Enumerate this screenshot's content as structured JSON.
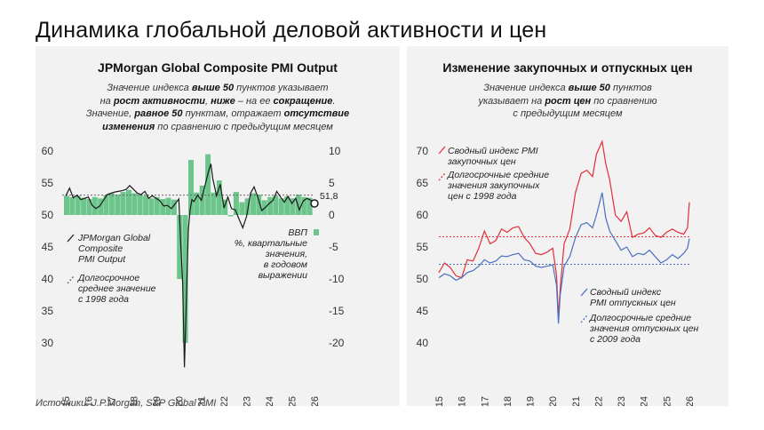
{
  "title": "Динамика глобальной деловой активности и цен",
  "source": "Источники: J.P.Morgan, S&P Global PMI",
  "left": {
    "title": "JPMorgan Global Composite PMI Output",
    "desc": {
      "l1a": "Значение индекса ",
      "l1b": "выше 50",
      "l1c": " пунктов указывает",
      "l2a": "на ",
      "l2b": "рост активности",
      "l2c": ", ",
      "l2d": "ниже",
      "l2e": " – на ее ",
      "l2f": "сокращение",
      "l2g": ".",
      "l3a": "Значение, ",
      "l3b": "равное 50",
      "l3c": " пунктам, отражает ",
      "l3d": "отсутствие",
      "l4a": "изменения",
      "l4b": " по сравнению с предыдущим месяцем"
    },
    "last_value_label": "51,8",
    "legend": {
      "pmi": [
        "JPMorgan Global",
        "Composite",
        "PMI Output"
      ],
      "avg": [
        "Долгосрочное",
        "среднее значение",
        "с 1998 года"
      ],
      "gdp": [
        "ВВП",
        "%, квартальные",
        "значения,",
        "в годовом",
        "выражении"
      ]
    }
  },
  "right": {
    "title": "Изменение закупочных и отпускных цен",
    "desc": {
      "l1a": "Значение индекса ",
      "l1b": "выше 50",
      "l1c": " пунктов",
      "l2a": "указывает на ",
      "l2b": "рост цен",
      "l2c": " по сравнению",
      "l3": "с предыдущим месяцем"
    },
    "legend": {
      "input": [
        "Сводный индекс PMI",
        "закупочных цен"
      ],
      "input_avg": [
        "Долгосрочные средние",
        "значения закупочных",
        "цен с 1998 года"
      ],
      "output": [
        "Сводный индекс",
        "PMI отпускных цен"
      ],
      "output_avg": [
        "Долгосрочные средние",
        "значения отпускных цен",
        "с 2009 года"
      ]
    }
  },
  "colors": {
    "pmi": "#1a1a1a",
    "gdp": "#6cc58a",
    "avg": "#666666",
    "input": "#e0303a",
    "output": "#4a6fbf",
    "panel": "#f2f2f2"
  },
  "chart_data": [
    {
      "type": "line",
      "title": "JPMorgan Global Composite PMI Output",
      "x_ticks": [
        "2015",
        "2016",
        "2017",
        "2018",
        "2019",
        "2020",
        "2021",
        "2022",
        "2023",
        "2024",
        "2025",
        "2026"
      ],
      "y_left": {
        "range": [
          30,
          60
        ],
        "ticks": [
          "30",
          "35",
          "40",
          "45",
          "50",
          "55",
          "60"
        ]
      },
      "y_right": {
        "range": [
          -20,
          10
        ],
        "ticks": [
          "-20",
          "-15",
          "-10",
          "-5",
          "0",
          "5",
          "10"
        ]
      },
      "series": [
        {
          "name": "JPMorgan Global Composite PMI Output",
          "axis": "left",
          "type": "line",
          "x": [
            2015.0,
            2015.17,
            2015.33,
            2015.5,
            2015.67,
            2015.83,
            2016.0,
            2016.17,
            2016.33,
            2016.5,
            2016.67,
            2016.83,
            2017.0,
            2017.17,
            2017.33,
            2017.5,
            2017.67,
            2017.83,
            2018.0,
            2018.17,
            2018.33,
            2018.5,
            2018.67,
            2018.83,
            2019.0,
            2019.17,
            2019.33,
            2019.5,
            2019.67,
            2019.83,
            2020.0,
            2020.08,
            2020.17,
            2020.25,
            2020.33,
            2020.42,
            2020.5,
            2020.58,
            2020.67,
            2020.83,
            2021.0,
            2021.17,
            2021.33,
            2021.42,
            2021.5,
            2021.67,
            2021.83,
            2022.0,
            2022.17,
            2022.33,
            2022.5,
            2022.67,
            2022.83,
            2023.0,
            2023.17,
            2023.33,
            2023.5,
            2023.67,
            2023.83,
            2024.0,
            2024.17,
            2024.33,
            2024.5,
            2024.67,
            2024.83,
            2025.0,
            2025.17,
            2025.33,
            2025.5,
            2025.67,
            2025.83,
            2026.0
          ],
          "values": [
            53.0,
            54.2,
            52.7,
            53.1,
            52.4,
            52.6,
            52.8,
            51.5,
            51.0,
            51.4,
            52.3,
            53.2,
            53.4,
            53.6,
            53.7,
            53.8,
            54.0,
            54.6,
            54.0,
            53.4,
            53.2,
            53.7,
            52.6,
            53.0,
            52.6,
            52.2,
            51.4,
            51.5,
            51.0,
            51.7,
            52.5,
            46.0,
            39.4,
            26.2,
            36.3,
            47.7,
            50.8,
            52.4,
            52.1,
            53.1,
            52.3,
            54.8,
            57.0,
            58.0,
            55.7,
            53.0,
            54.8,
            51.1,
            52.8,
            51.0,
            50.8,
            49.3,
            48.0,
            49.8,
            53.4,
            54.4,
            52.7,
            50.7,
            51.2,
            51.8,
            52.3,
            53.7,
            52.8,
            52.0,
            52.9,
            51.8,
            52.6,
            50.8,
            52.2,
            52.6,
            52.3,
            51.8
          ]
        },
        {
          "name": "Долгосрочное среднее значение с 1998 года",
          "axis": "left",
          "type": "dashed-line",
          "values": [
            53.1
          ]
        },
        {
          "name": "ВВП",
          "axis": "right",
          "type": "bar",
          "x": [
            2015.0,
            2015.25,
            2015.5,
            2015.75,
            2016.0,
            2016.25,
            2016.5,
            2016.75,
            2017.0,
            2017.25,
            2017.5,
            2017.75,
            2018.0,
            2018.25,
            2018.5,
            2018.75,
            2019.0,
            2019.25,
            2019.5,
            2019.75,
            2020.0,
            2020.25,
            2020.5,
            2020.75,
            2021.0,
            2021.25,
            2021.5,
            2021.75,
            2022.0,
            2022.25,
            2022.5,
            2022.75,
            2023.0,
            2023.25,
            2023.5,
            2023.75,
            2024.0,
            2024.25,
            2024.5,
            2024.75,
            2025.0,
            2025.25,
            2025.5,
            2025.75
          ],
          "values": [
            3.0,
            2.8,
            3.0,
            2.7,
            2.5,
            2.8,
            2.6,
            3.1,
            3.4,
            3.2,
            3.6,
            3.9,
            3.4,
            3.2,
            3.0,
            2.6,
            2.8,
            2.5,
            2.7,
            2.4,
            -10.0,
            -20.0,
            8.6,
            3.5,
            4.6,
            9.5,
            3.5,
            5.4,
            2.4,
            -0.2,
            3.6,
            2.0,
            2.6,
            3.4,
            3.2,
            2.3,
            2.8,
            3.0,
            2.6,
            2.9,
            2.6,
            3.2,
            2.8,
            2.7
          ]
        }
      ]
    },
    {
      "type": "line",
      "title": "Изменение закупочных и отпускных цен",
      "x_ticks": [
        "2015",
        "2016",
        "2017",
        "2018",
        "2019",
        "2020",
        "2021",
        "2022",
        "2023",
        "2024",
        "2025",
        "2026"
      ],
      "y_left": {
        "range": [
          40,
          70
        ],
        "ticks": [
          "40",
          "45",
          "50",
          "55",
          "60",
          "65",
          "70"
        ]
      },
      "series": [
        {
          "name": "Сводный индекс PMI закупочных цен",
          "type": "line",
          "x": [
            2015.0,
            2015.25,
            2015.5,
            2015.75,
            2016.0,
            2016.25,
            2016.5,
            2016.75,
            2017.0,
            2017.25,
            2017.5,
            2017.75,
            2018.0,
            2018.25,
            2018.5,
            2018.75,
            2019.0,
            2019.25,
            2019.5,
            2019.75,
            2020.0,
            2020.17,
            2020.25,
            2020.33,
            2020.5,
            2020.75,
            2021.0,
            2021.25,
            2021.5,
            2021.75,
            2021.92,
            2022.17,
            2022.33,
            2022.5,
            2022.75,
            2023.0,
            2023.25,
            2023.5,
            2023.75,
            2024.0,
            2024.25,
            2024.5,
            2024.75,
            2025.0,
            2025.25,
            2025.5,
            2025.75,
            2025.92,
            2026.0
          ],
          "values": [
            51.0,
            52.5,
            51.8,
            50.5,
            50.2,
            53.0,
            52.8,
            54.8,
            57.5,
            55.5,
            56.0,
            57.8,
            57.3,
            58.0,
            58.2,
            56.5,
            55.5,
            54.0,
            53.8,
            54.2,
            54.8,
            50.5,
            44.0,
            48.5,
            55.5,
            57.8,
            63.5,
            66.5,
            67.0,
            66.0,
            69.5,
            71.5,
            68.0,
            65.5,
            60.0,
            59.0,
            60.5,
            56.5,
            57.0,
            57.2,
            58.0,
            56.8,
            56.5,
            57.3,
            57.8,
            57.3,
            57.0,
            58.0,
            62.0
          ]
        },
        {
          "name": "Долгосрочные средние значения закупочных цен с 1998 года",
          "type": "dashed-line",
          "values": [
            56.6
          ]
        },
        {
          "name": "Сводный индекс PMI отпускных цен",
          "type": "line",
          "x": [
            2015.0,
            2015.25,
            2015.5,
            2015.75,
            2016.0,
            2016.25,
            2016.5,
            2016.75,
            2017.0,
            2017.25,
            2017.5,
            2017.75,
            2018.0,
            2018.25,
            2018.5,
            2018.75,
            2019.0,
            2019.25,
            2019.5,
            2019.75,
            2020.0,
            2020.17,
            2020.25,
            2020.33,
            2020.5,
            2020.75,
            2021.0,
            2021.25,
            2021.5,
            2021.75,
            2021.92,
            2022.17,
            2022.33,
            2022.5,
            2022.75,
            2023.0,
            2023.25,
            2023.5,
            2023.75,
            2024.0,
            2024.25,
            2024.5,
            2024.75,
            2025.0,
            2025.25,
            2025.5,
            2025.75,
            2025.92,
            2026.0
          ],
          "values": [
            50.2,
            50.8,
            50.5,
            49.8,
            50.2,
            51.0,
            51.3,
            52.0,
            53.0,
            52.5,
            52.8,
            53.6,
            53.5,
            53.8,
            54.0,
            53.0,
            52.8,
            52.0,
            51.8,
            52.0,
            52.2,
            49.0,
            43.0,
            47.5,
            52.0,
            53.5,
            56.5,
            58.5,
            58.8,
            58.0,
            60.0,
            63.5,
            59.5,
            57.5,
            56.0,
            54.5,
            55.0,
            53.5,
            54.0,
            53.8,
            54.5,
            53.5,
            52.5,
            53.0,
            53.8,
            53.2,
            54.0,
            54.8,
            56.3
          ]
        },
        {
          "name": "Долгосрочные средние значения отпускных цен с 2009 года",
          "type": "dashed-line",
          "values": [
            52.3
          ]
        }
      ]
    }
  ]
}
